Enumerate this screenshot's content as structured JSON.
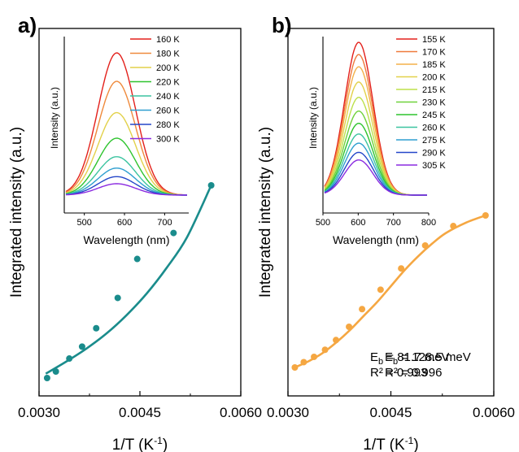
{
  "chart_data": [
    {
      "panel": "a)",
      "type": "scatter",
      "xlabel": "1/T (K⁻¹)",
      "ylabel": "Integrated intensity (a.u.)",
      "xlim": [
        0.003,
        0.006
      ],
      "ylim": [
        0,
        1
      ],
      "xticks": [
        "0.0030",
        "0.0045",
        "0.0060"
      ],
      "point_color": "#1a8c8c",
      "fit_color": "#1a8c8c",
      "series": [
        {
          "x": [
            0.00312,
            0.00325,
            0.00345,
            0.00364,
            0.00385,
            0.00417,
            0.00446,
            0.005,
            0.00556
          ],
          "y": [
            0.11,
            0.14,
            0.2,
            0.255,
            0.34,
            0.48,
            0.66,
            0.78,
            1.0
          ]
        }
      ],
      "fit": {
        "x": [
          0.0031,
          0.0034,
          0.0037,
          0.004,
          0.0043,
          0.0046,
          0.0049,
          0.0052,
          0.00556
        ],
        "y": [
          0.13,
          0.185,
          0.245,
          0.315,
          0.4,
          0.5,
          0.62,
          0.76,
          1.0
        ]
      },
      "annotation": {
        "line1_main": "E",
        "line1_sub": "b",
        "line1_rest": " = 81.7 meV",
        "line2": "R² = 0.993"
      },
      "inset": {
        "xlabel": "Wavelength (nm)",
        "ylabel": "Intensity (a.u.)",
        "xlim": [
          450,
          760
        ],
        "xticks": [
          500,
          600,
          700
        ],
        "peak_nm": 580,
        "curves": [
          {
            "name": "160 K",
            "color": "#e3201b",
            "peak": 1.0
          },
          {
            "name": "180 K",
            "color": "#ef8a3c",
            "peak": 0.8
          },
          {
            "name": "200 K",
            "color": "#e2d14a",
            "peak": 0.58
          },
          {
            "name": "220 K",
            "color": "#2ec42e",
            "peak": 0.4
          },
          {
            "name": "240 K",
            "color": "#3cc4a0",
            "peak": 0.27
          },
          {
            "name": "260 K",
            "color": "#2f9fd0",
            "peak": 0.19
          },
          {
            "name": "280 K",
            "color": "#2547c9",
            "peak": 0.13
          },
          {
            "name": "300 K",
            "color": "#8b2be0",
            "peak": 0.08
          }
        ]
      }
    },
    {
      "panel": "b)",
      "type": "scatter",
      "xlabel": "1/T (K⁻¹)",
      "ylabel": "Integrated intensity (a.u.)",
      "xlim": [
        0.003,
        0.006
      ],
      "ylim": [
        0,
        1
      ],
      "xticks": [
        "0.0030",
        "0.0045",
        "0.0060"
      ],
      "point_color": "#f5a742",
      "fit_color": "#f5a742",
      "series": [
        {
          "x": [
            0.0031,
            0.00323,
            0.00338,
            0.00354,
            0.0037,
            0.00389,
            0.00408,
            0.00435,
            0.00465,
            0.005,
            0.00541,
            0.00588
          ],
          "y": [
            0.14,
            0.17,
            0.2,
            0.24,
            0.295,
            0.37,
            0.47,
            0.58,
            0.7,
            0.83,
            0.94,
            1.0
          ]
        }
      ],
      "fit": {
        "x": [
          0.0031,
          0.0033,
          0.0035,
          0.0037,
          0.0039,
          0.0041,
          0.0043,
          0.0045,
          0.0047,
          0.0049,
          0.0051,
          0.0053,
          0.0056,
          0.00588
        ],
        "y": [
          0.14,
          0.175,
          0.22,
          0.28,
          0.35,
          0.43,
          0.51,
          0.6,
          0.69,
          0.77,
          0.84,
          0.9,
          0.96,
          1.0
        ]
      },
      "annotation": {
        "line1_main": "E",
        "line1_sub": "b",
        "line1_rest": " = 128.5 meV",
        "line2": "R² = 0.996"
      },
      "inset": {
        "xlabel": "Wavelength (nm)",
        "ylabel": "Intensity (a.u.)",
        "xlim": [
          500,
          800
        ],
        "xticks": [
          500,
          600,
          700,
          800
        ],
        "peak_nm": 600,
        "curves": [
          {
            "name": "155 K",
            "color": "#e3201b",
            "peak": 1.0
          },
          {
            "name": "170 K",
            "color": "#ef7a3c",
            "peak": 0.92
          },
          {
            "name": "185 K",
            "color": "#f3b04a",
            "peak": 0.84
          },
          {
            "name": "200 K",
            "color": "#e2d14a",
            "peak": 0.74
          },
          {
            "name": "215 K",
            "color": "#bde04a",
            "peak": 0.64
          },
          {
            "name": "230 K",
            "color": "#6fd13a",
            "peak": 0.55
          },
          {
            "name": "245 K",
            "color": "#2ec42e",
            "peak": 0.47
          },
          {
            "name": "260 K",
            "color": "#3cc4a0",
            "peak": 0.4
          },
          {
            "name": "275 K",
            "color": "#2f9fd0",
            "peak": 0.34
          },
          {
            "name": "290 K",
            "color": "#2547c9",
            "peak": 0.28
          },
          {
            "name": "305 K",
            "color": "#8b2be0",
            "peak": 0.23
          }
        ]
      }
    }
  ]
}
